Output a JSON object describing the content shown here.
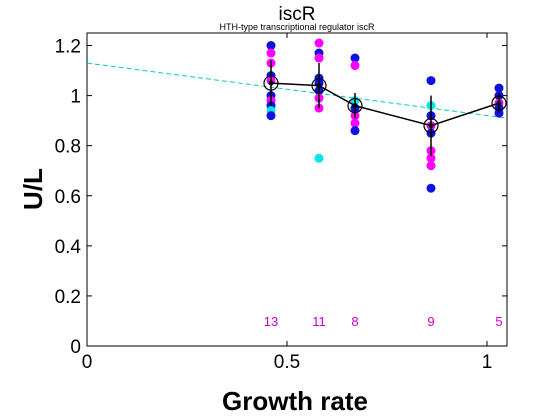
{
  "chart_data": {
    "type": "scatter",
    "title": "iscR",
    "subtitle": "HTH-type transcriptional regulator iscR",
    "xlabel": "Growth rate",
    "ylabel": "U/L",
    "xlim": [
      0,
      1.05
    ],
    "ylim": [
      0,
      1.25
    ],
    "xticks": [
      {
        "value": 0,
        "label": "0"
      },
      {
        "value": 0.5,
        "label": "0.5"
      },
      {
        "value": 1,
        "label": "1"
      }
    ],
    "yticks": [
      {
        "value": 0,
        "label": "0"
      },
      {
        "value": 0.2,
        "label": "0.2"
      },
      {
        "value": 0.4,
        "label": "0.4"
      },
      {
        "value": 0.6,
        "label": "0.6"
      },
      {
        "value": 0.8,
        "label": "0.8"
      },
      {
        "value": 1,
        "label": "1"
      },
      {
        "value": 1.2,
        "label": "1.2"
      }
    ],
    "grid": false,
    "colors": {
      "blue": "#1010e0",
      "magenta": "#ff00ff",
      "cyan": "#00e5e5",
      "mean_line": "#000000",
      "trend_line": "#00cccc",
      "count_text": "#cc00cc"
    },
    "points": [
      {
        "x": 0.46,
        "y": 1.2,
        "color": "blue"
      },
      {
        "x": 0.46,
        "y": 1.17,
        "color": "magenta"
      },
      {
        "x": 0.46,
        "y": 1.13,
        "color": "magenta"
      },
      {
        "x": 0.46,
        "y": 1.08,
        "color": "blue"
      },
      {
        "x": 0.46,
        "y": 1.06,
        "color": "magenta"
      },
      {
        "x": 0.46,
        "y": 1.0,
        "color": "blue"
      },
      {
        "x": 0.46,
        "y": 0.98,
        "color": "magenta"
      },
      {
        "x": 0.46,
        "y": 0.96,
        "color": "blue"
      },
      {
        "x": 0.46,
        "y": 0.94,
        "color": "cyan"
      },
      {
        "x": 0.46,
        "y": 0.92,
        "color": "blue"
      },
      {
        "x": 0.58,
        "y": 1.21,
        "color": "magenta"
      },
      {
        "x": 0.58,
        "y": 1.17,
        "color": "blue"
      },
      {
        "x": 0.58,
        "y": 1.15,
        "color": "magenta"
      },
      {
        "x": 0.58,
        "y": 1.07,
        "color": "blue"
      },
      {
        "x": 0.58,
        "y": 1.05,
        "color": "blue"
      },
      {
        "x": 0.58,
        "y": 1.02,
        "color": "blue"
      },
      {
        "x": 0.58,
        "y": 0.99,
        "color": "magenta"
      },
      {
        "x": 0.58,
        "y": 0.95,
        "color": "magenta"
      },
      {
        "x": 0.58,
        "y": 0.75,
        "color": "cyan"
      },
      {
        "x": 0.67,
        "y": 1.15,
        "color": "blue"
      },
      {
        "x": 0.67,
        "y": 1.12,
        "color": "magenta"
      },
      {
        "x": 0.67,
        "y": 0.98,
        "color": "cyan"
      },
      {
        "x": 0.67,
        "y": 0.95,
        "color": "blue"
      },
      {
        "x": 0.67,
        "y": 0.92,
        "color": "magenta"
      },
      {
        "x": 0.67,
        "y": 0.89,
        "color": "magenta"
      },
      {
        "x": 0.67,
        "y": 0.86,
        "color": "blue"
      },
      {
        "x": 0.86,
        "y": 1.06,
        "color": "blue"
      },
      {
        "x": 0.86,
        "y": 0.96,
        "color": "cyan"
      },
      {
        "x": 0.86,
        "y": 0.92,
        "color": "blue"
      },
      {
        "x": 0.86,
        "y": 0.88,
        "color": "magenta"
      },
      {
        "x": 0.86,
        "y": 0.85,
        "color": "blue"
      },
      {
        "x": 0.86,
        "y": 0.78,
        "color": "magenta"
      },
      {
        "x": 0.86,
        "y": 0.75,
        "color": "magenta"
      },
      {
        "x": 0.86,
        "y": 0.72,
        "color": "magenta"
      },
      {
        "x": 0.86,
        "y": 0.63,
        "color": "blue"
      },
      {
        "x": 1.03,
        "y": 1.03,
        "color": "blue"
      },
      {
        "x": 1.03,
        "y": 1.0,
        "color": "blue"
      },
      {
        "x": 1.03,
        "y": 0.97,
        "color": "magenta"
      },
      {
        "x": 1.03,
        "y": 0.95,
        "color": "blue"
      },
      {
        "x": 1.03,
        "y": 0.93,
        "color": "blue"
      }
    ],
    "means": [
      {
        "x": 0.46,
        "y": 1.05,
        "err": 0.09
      },
      {
        "x": 0.58,
        "y": 1.04,
        "err": 0.09
      },
      {
        "x": 0.67,
        "y": 0.96,
        "err": 0.05
      },
      {
        "x": 0.86,
        "y": 0.88,
        "err": 0.12
      },
      {
        "x": 1.03,
        "y": 0.97,
        "err": 0.04
      }
    ],
    "trend_line": {
      "x": [
        0,
        1.05
      ],
      "y": [
        1.13,
        0.91
      ]
    },
    "counts": [
      {
        "x": 0.46,
        "label": "13"
      },
      {
        "x": 0.58,
        "label": "11"
      },
      {
        "x": 0.67,
        "label": "8"
      },
      {
        "x": 0.86,
        "label": "9"
      },
      {
        "x": 1.03,
        "label": "5"
      }
    ],
    "count_y": 0.1
  }
}
